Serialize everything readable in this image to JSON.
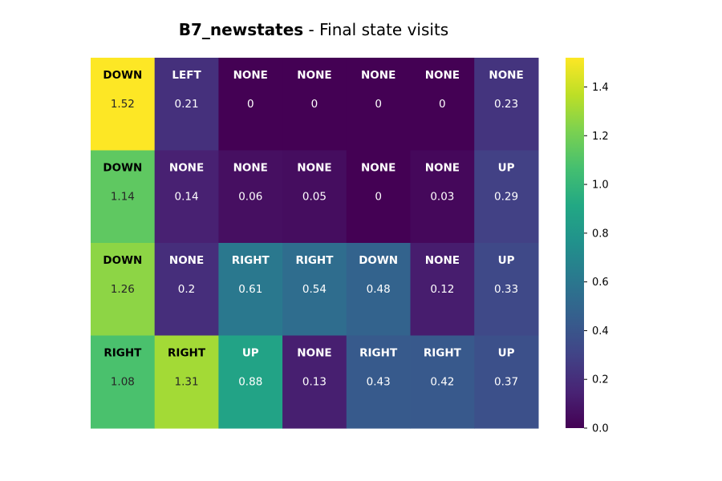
{
  "chart_data": {
    "type": "heatmap",
    "title": {
      "bold": "B7_newstates",
      "rest": " - Final state visits"
    },
    "rows": 4,
    "cols": 7,
    "actions": [
      [
        "DOWN",
        "LEFT",
        "NONE",
        "NONE",
        "NONE",
        "NONE",
        "NONE"
      ],
      [
        "DOWN",
        "NONE",
        "NONE",
        "NONE",
        "NONE",
        "NONE",
        "UP"
      ],
      [
        "DOWN",
        "NONE",
        "RIGHT",
        "RIGHT",
        "DOWN",
        "NONE",
        "UP"
      ],
      [
        "RIGHT",
        "RIGHT",
        "UP",
        "NONE",
        "RIGHT",
        "RIGHT",
        "UP"
      ]
    ],
    "values": [
      [
        1.52,
        0.21,
        0,
        0,
        0,
        0,
        0.23
      ],
      [
        1.14,
        0.14,
        0.06,
        0.05,
        0,
        0.03,
        0.29
      ],
      [
        1.26,
        0.2,
        0.61,
        0.54,
        0.48,
        0.12,
        0.33
      ],
      [
        1.08,
        1.31,
        0.88,
        0.13,
        0.43,
        0.42,
        0.37
      ]
    ],
    "value_labels": [
      [
        "1.52",
        "0.21",
        "0",
        "0",
        "0",
        "0",
        "0.23"
      ],
      [
        "1.14",
        "0.14",
        "0.06",
        "0.05",
        "0",
        "0.03",
        "0.29"
      ],
      [
        "1.26",
        "0.2",
        "0.61",
        "0.54",
        "0.48",
        "0.12",
        "0.33"
      ],
      [
        "1.08",
        "1.31",
        "0.88",
        "0.13",
        "0.43",
        "0.42",
        "0.37"
      ]
    ],
    "colormap": "viridis",
    "vmin": 0,
    "vmax": 1.52,
    "colorbar": {
      "ticks": [
        0.0,
        0.2,
        0.4,
        0.6,
        0.8,
        1.0,
        1.2,
        1.4
      ],
      "tick_labels": [
        "0.0",
        "0.2",
        "0.4",
        "0.6",
        "0.8",
        "1.0",
        "1.2",
        "1.4"
      ]
    }
  }
}
